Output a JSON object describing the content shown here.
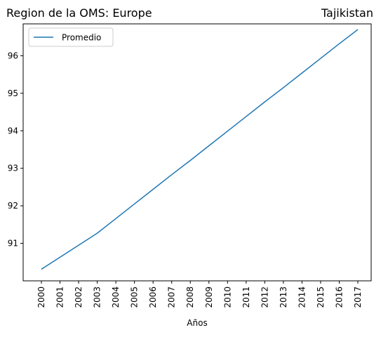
{
  "chart_data": {
    "type": "line",
    "title_left": "Region de la OMS: Europe",
    "title_right": "Tajikistan",
    "xlabel": "Años",
    "ylabel": "",
    "x": [
      "2000",
      "2001",
      "2002",
      "2003",
      "2004",
      "2005",
      "2006",
      "2007",
      "2008",
      "2009",
      "2010",
      "2011",
      "2012",
      "2013",
      "2014",
      "2015",
      "2016",
      "2017"
    ],
    "series": [
      {
        "name": "Promedio",
        "color": "#1f77b4",
        "values": [
          90.31,
          90.63,
          90.95,
          91.27,
          91.66,
          92.05,
          92.44,
          92.83,
          93.21,
          93.6,
          93.99,
          94.38,
          94.77,
          95.15,
          95.54,
          95.93,
          96.32,
          96.7
        ]
      }
    ],
    "yticks": [
      91,
      92,
      93,
      94,
      95,
      96
    ],
    "ylim": [
      90.0,
      96.85
    ],
    "legend_position": "top-left",
    "grid": false
  }
}
